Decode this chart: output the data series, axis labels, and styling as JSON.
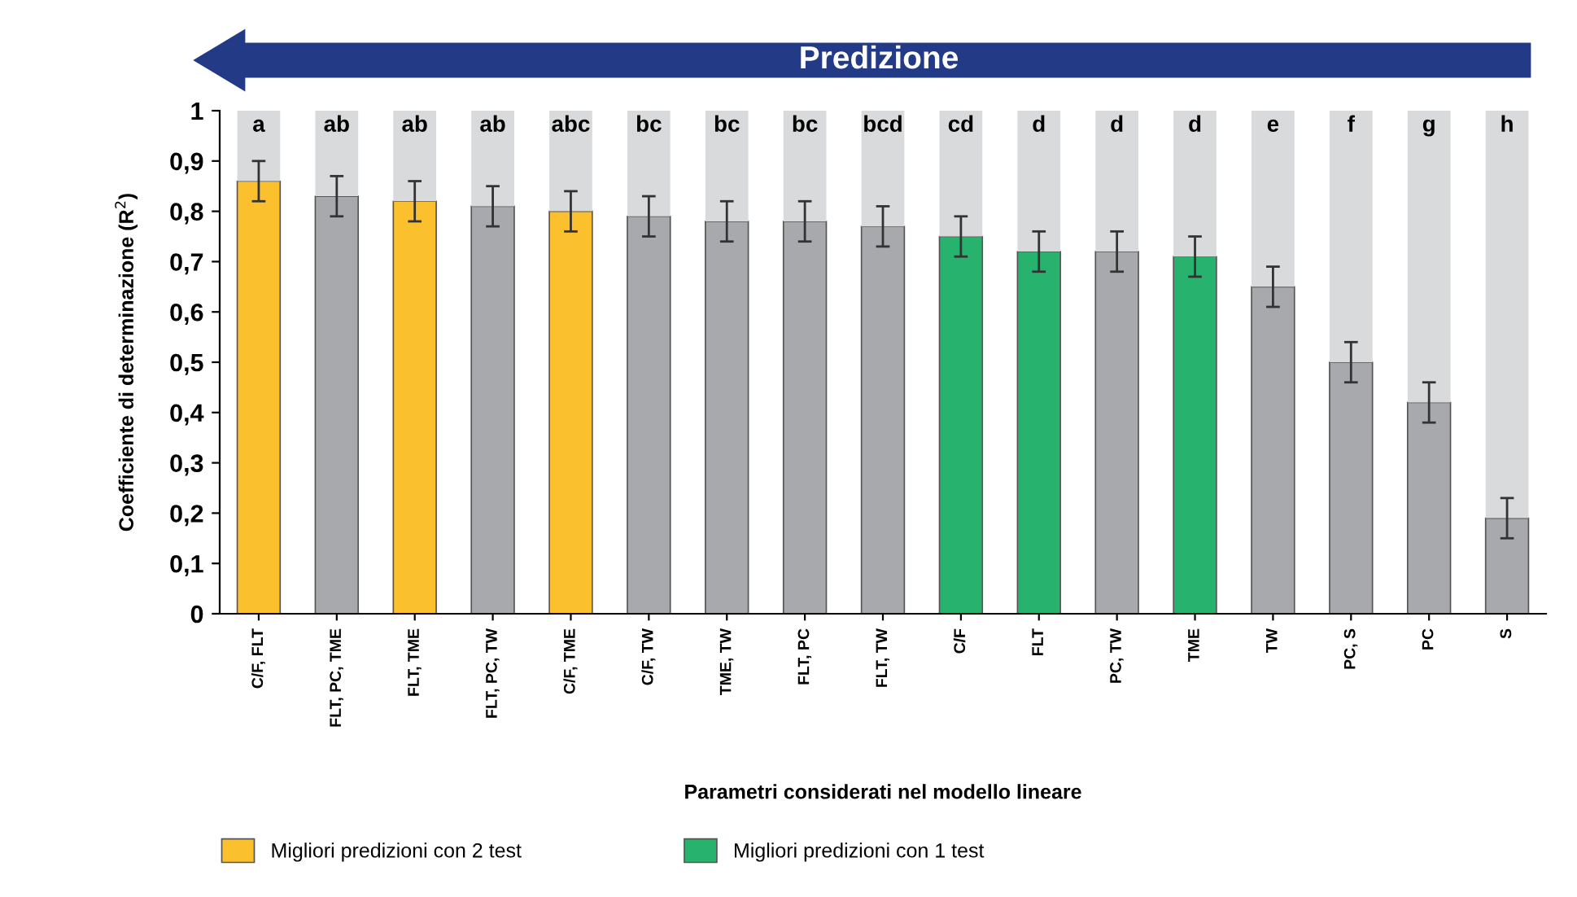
{
  "chart_data": {
    "type": "bar",
    "stacked": true,
    "xlabel": "Parametri considerati nel modello lineare",
    "ylabel": "Coefficiente di determinazione (R$^{2}$)",
    "categories": [
      "C/F, FLT",
      "FLT, PC, TME",
      "FLT, TME",
      "FLT, PC, TW",
      "C/F, TME",
      "C/F, TW",
      "TME, TW",
      "FLT, PC",
      "FLT, TW",
      "C/F",
      "FLT",
      "PC, TW",
      "TME",
      "TW",
      "PC, S",
      "PC",
      "S"
    ],
    "series": [
      {
        "name": "Migliori predizioni con 2 test",
        "color": "#fbc02d",
        "values": [
          0.86,
          null,
          0.82,
          null,
          0.8,
          null,
          null,
          null,
          null,
          null,
          null,
          null,
          null,
          null,
          null,
          null,
          null
        ],
        "errors": [
          0.04,
          null,
          0.04,
          null,
          0.04,
          null,
          null,
          null,
          null,
          null,
          null,
          null,
          null,
          null,
          null,
          null,
          null
        ]
      },
      {
        "name": "Migliori predizioni con 1 test",
        "color": "#27b36e",
        "values": [
          null,
          null,
          null,
          null,
          null,
          null,
          null,
          null,
          null,
          0.75,
          0.72,
          null,
          0.71,
          null,
          null,
          null,
          null
        ],
        "errors": [
          null,
          null,
          null,
          null,
          null,
          null,
          null,
          null,
          null,
          0.04,
          0.04,
          null,
          0.04,
          null,
          null,
          null,
          null
        ]
      },
      {
        "color": "#a7a9ac",
        "values": [
          null,
          0.83,
          null,
          0.81,
          null,
          0.79,
          0.78,
          0.78,
          0.77,
          null,
          null,
          0.72,
          null,
          0.65,
          0.5,
          0.42,
          0.19
        ],
        "errors": [
          null,
          0.04,
          null,
          0.04,
          null,
          0.04,
          0.04,
          0.04,
          0.04,
          null,
          null,
          0.04,
          null,
          0.04,
          0.04,
          0.04,
          0.04
        ]
      },
      {
        "color": "#d9dadb",
        "values": [
          0.14,
          0.17,
          0.18,
          0.19,
          0.2,
          0.21,
          0.22,
          0.22,
          0.23,
          0.25,
          0.28,
          0.28,
          0.29,
          0.35,
          0.5,
          0.58,
          0.81
        ]
      }
    ],
    "ylim": [
      0,
      1
    ],
    "yticks": [
      0,
      {
        "value": 0.1,
        "label": "0,1"
      },
      {
        "value": 0.2,
        "label": "0,2"
      },
      {
        "value": 0.3,
        "label": "0,3"
      },
      {
        "value": 0.4,
        "label": "0,4"
      },
      {
        "value": 0.5,
        "label": "0,5"
      },
      {
        "value": 0.6,
        "label": "0,6"
      },
      {
        "value": 0.7,
        "label": "0,7"
      },
      {
        "value": 0.8,
        "label": "0,8"
      },
      {
        "value": 0.9,
        "label": "0,9"
      },
      1
    ],
    "annotations": [
      "Predizione",
      "a",
      "ab",
      "ab",
      "ab",
      "abc",
      "bc",
      "bc",
      "bc",
      "bcd",
      "cd",
      "d",
      "d",
      "d",
      "e",
      "f",
      "g",
      "h"
    ],
    "legend": "bottom",
    "grid": false
  }
}
